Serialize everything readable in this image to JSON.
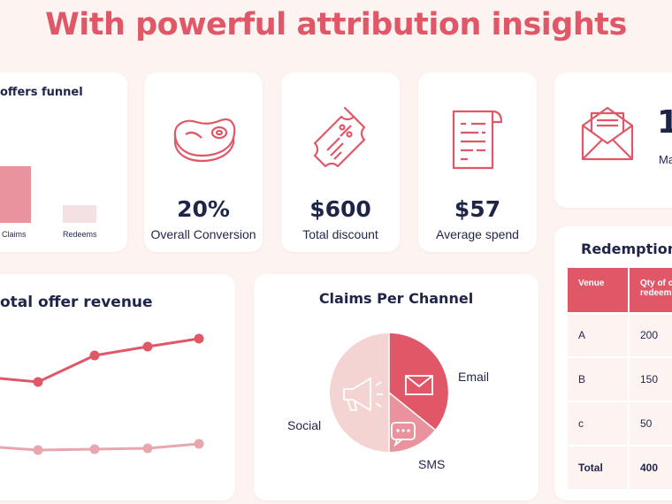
{
  "headline": "With powerful attribution insights",
  "funnel": {
    "title": "offers funnel",
    "bars": [
      {
        "label": "Claims",
        "color": "#e8939d"
      },
      {
        "label": "Redeems",
        "color": "#f4e2e2"
      }
    ]
  },
  "stats": [
    {
      "icon": "steak-icon",
      "value": "20%",
      "label": "Overall Conversion"
    },
    {
      "icon": "coupon-ticket-icon",
      "value": "$600",
      "label": "Total discount"
    },
    {
      "icon": "receipt-icon",
      "value": "$57",
      "label": "Average spend"
    }
  ],
  "mail_card": {
    "icon": "envelope-letter-icon",
    "partial_value": "1",
    "partial_label": "Ma"
  },
  "revenue": {
    "title": "otal offer revenue"
  },
  "claims_channel": {
    "title": "Claims Per Channel",
    "slices": [
      {
        "name": "Email",
        "color": "#e05768"
      },
      {
        "name": "SMS",
        "color": "#e8939d"
      },
      {
        "name": "Social",
        "color": "#f4d3d3"
      }
    ]
  },
  "redemption": {
    "title": "Redemption",
    "headers": [
      "Venue",
      "Qty of c redeem"
    ],
    "rows": [
      {
        "venue": "A",
        "qty": "200"
      },
      {
        "venue": "B",
        "qty": "150"
      },
      {
        "venue": "c",
        "qty": "50"
      }
    ],
    "total": {
      "venue": "Total",
      "qty": "400"
    }
  },
  "colors": {
    "accent": "#e05768",
    "accent_light": "#e8939d",
    "navy": "#1f2548",
    "bg": "#fdf4f1"
  }
}
